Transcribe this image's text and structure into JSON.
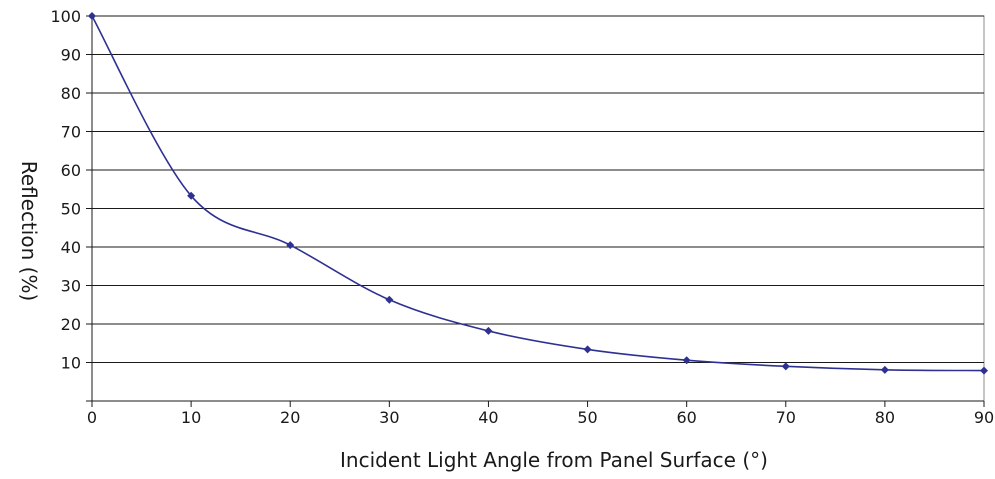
{
  "chart_data": {
    "type": "line",
    "title": "",
    "xlabel": "Incident Light Angle from Panel Surface (°)",
    "ylabel": "Reflection (%)",
    "xlim": [
      0,
      90
    ],
    "ylim": [
      0,
      100
    ],
    "xticks": [
      0,
      10,
      20,
      30,
      40,
      50,
      60,
      70,
      80,
      90
    ],
    "yticks": [
      10,
      20,
      30,
      40,
      50,
      60,
      70,
      80,
      90,
      100
    ],
    "grid": "horizontal",
    "legend": "none",
    "series": [
      {
        "x": [
          0,
          10,
          20,
          30,
          40,
          50,
          60,
          70,
          80,
          90
        ],
        "values": [
          100,
          53.3,
          40.5,
          26.3,
          18.2,
          13.4,
          10.6,
          9.0,
          8.1,
          7.9
        ],
        "color": "#2e3192"
      }
    ]
  }
}
